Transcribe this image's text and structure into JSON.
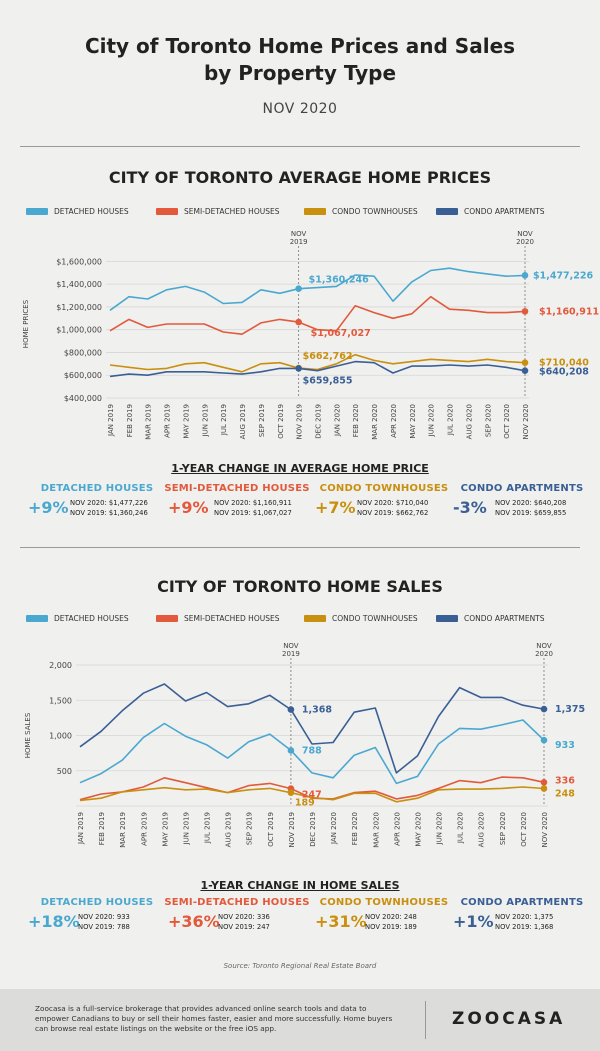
{
  "header": {
    "title_line1": "City of Toronto Home Prices and Sales",
    "title_line2": "by Property Type",
    "subtitle": "NOV 2020"
  },
  "colors": {
    "detached": "#4aa8d0",
    "semi": "#e2593b",
    "townhouse": "#c98f0e",
    "apartment": "#3a5f95"
  },
  "legend": [
    "DETACHED HOUSES",
    "SEMI-DETACHED HOUSES",
    "CONDO TOWNHOUSES",
    "CONDO APARTMENTS"
  ],
  "months": [
    "JAN 2019",
    "FEB 2019",
    "MAR 2019",
    "APR 2019",
    "MAY 2019",
    "JUN 2019",
    "JUL 2019",
    "AUG 2019",
    "SEP 2019",
    "OCT 2019",
    "NOV 2019",
    "DEC 2019",
    "JAN 2020",
    "FEB 2020",
    "MAR 2020",
    "APR 2020",
    "MAY 2020",
    "JUN 2020",
    "JUL 2020",
    "AUG 2020",
    "SEP 2020",
    "OCT 2020",
    "NOV 2020"
  ],
  "price_section": {
    "title": "CITY OF TORONTO AVERAGE HOME PRICES",
    "change_title": "1-YEAR CHANGE IN AVERAGE HOME PRICE",
    "changes": [
      {
        "name": "DETACHED HOUSES",
        "pct": "+9%",
        "l1": "NOV 2020:  $1,477,226",
        "l2": "NOV 2019:  $1,360,246"
      },
      {
        "name": "SEMI-DETACHED HOUSES",
        "pct": "+9%",
        "l1": "NOV 2020:  $1,160,911",
        "l2": "NOV 2019:  $1,067,027"
      },
      {
        "name": "CONDO TOWNHOUSES",
        "pct": "+7%",
        "l1": "NOV 2020:  $710,040",
        "l2": "NOV 2019:  $662,762"
      },
      {
        "name": "CONDO APARTMENTS",
        "pct": "-3%",
        "l1": "NOV 2020:  $640,208",
        "l2": "NOV 2019:  $659,855"
      }
    ]
  },
  "sales_section": {
    "title": "CITY OF TORONTO HOME SALES",
    "change_title": "1-YEAR CHANGE IN HOME SALES",
    "changes": [
      {
        "name": "DETACHED HOUSES",
        "pct": "+18%",
        "l1": "NOV 2020:  933",
        "l2": "NOV 2019:  788"
      },
      {
        "name": "SEMI-DETACHED HOUSES",
        "pct": "+36%",
        "l1": "NOV 2020:  336",
        "l2": "NOV 2019:  247"
      },
      {
        "name": "CONDO TOWNHOUSES",
        "pct": "+31%",
        "l1": "NOV 2020:  248",
        "l2": "NOV 2019:  189"
      },
      {
        "name": "CONDO APARTMENTS",
        "pct": "+1%",
        "l1": "NOV 2020:  1,375",
        "l2": "NOV 2019:  1,368"
      }
    ]
  },
  "source": "Source: Toronto Regional Real Estate Board",
  "footer": {
    "text": "Zoocasa is a full-service brokerage that provides advanced online search tools and data to empower Canadians to buy or sell their homes faster, easier and more successfully. Home buyers can browse real estate listings on the website or the free iOS app.",
    "logo": "ZOOCASA"
  },
  "chart_data": [
    {
      "type": "line",
      "title": "CITY OF TORONTO AVERAGE HOME PRICES",
      "ylabel": "HOME PRICES",
      "ylim": [
        400000,
        1700000
      ],
      "yticks": [
        "$400,000",
        "$600,000",
        "$800,000",
        "$1,000,000",
        "$1,200,000",
        "$1,400,000",
        "$1,600,000"
      ],
      "ytick_values": [
        400000,
        600000,
        800000,
        1000000,
        1200000,
        1400000,
        1600000
      ],
      "marker_labels": [
        "NOV\n2019",
        "NOV\n2020"
      ],
      "series": [
        {
          "name": "DETACHED HOUSES",
          "key": "detached",
          "values": [
            1170000,
            1290000,
            1270000,
            1350000,
            1380000,
            1330000,
            1230000,
            1240000,
            1350000,
            1320000,
            1360246,
            1370000,
            1380000,
            1480000,
            1470000,
            1250000,
            1420000,
            1520000,
            1540000,
            1510000,
            1490000,
            1470000,
            1477226
          ],
          "label_nov19": "$1,360,246",
          "label_nov20": "$1,477,226"
        },
        {
          "name": "SEMI-DETACHED HOUSES",
          "key": "semi",
          "values": [
            990000,
            1090000,
            1020000,
            1050000,
            1050000,
            1050000,
            980000,
            960000,
            1060000,
            1090000,
            1067027,
            1000000,
            990000,
            1210000,
            1150000,
            1100000,
            1140000,
            1290000,
            1180000,
            1170000,
            1150000,
            1150000,
            1160911
          ],
          "label_nov19": "$1,067,027",
          "label_nov20": "$1,160,911"
        },
        {
          "name": "CONDO TOWNHOUSES",
          "key": "townhouse",
          "values": [
            690000,
            670000,
            650000,
            660000,
            700000,
            710000,
            670000,
            630000,
            700000,
            710000,
            662762,
            650000,
            700000,
            780000,
            730000,
            700000,
            720000,
            740000,
            730000,
            720000,
            740000,
            720000,
            710040
          ],
          "label_nov19": "$662,762",
          "label_nov20": "$710,040"
        },
        {
          "name": "CONDO APARTMENTS",
          "key": "apartment",
          "values": [
            590000,
            610000,
            600000,
            630000,
            630000,
            630000,
            620000,
            610000,
            630000,
            660000,
            659855,
            640000,
            680000,
            720000,
            710000,
            620000,
            680000,
            680000,
            690000,
            680000,
            690000,
            670000,
            640208
          ],
          "label_nov19": "$659,855",
          "label_nov20": "$640,208"
        }
      ]
    },
    {
      "type": "line",
      "title": "CITY OF TORONTO HOME SALES",
      "ylabel": "HOME SALES",
      "ylim": [
        0,
        2000
      ],
      "yticks": [
        "",
        "500",
        "1,000",
        "1,500",
        "2,000"
      ],
      "ytick_values": [
        0,
        500,
        1000,
        1500,
        2000
      ],
      "marker_labels": [
        "NOV\n2019",
        "NOV\n2020"
      ],
      "series": [
        {
          "name": "DETACHED HOUSES",
          "key": "detached",
          "values": [
            330,
            460,
            650,
            970,
            1170,
            990,
            870,
            680,
            910,
            1020,
            788,
            470,
            400,
            720,
            830,
            320,
            420,
            880,
            1100,
            1090,
            1150,
            1220,
            933
          ],
          "label_nov19": "788",
          "label_nov20": "933"
        },
        {
          "name": "SEMI-DETACHED HOUSES",
          "key": "semi",
          "values": [
            90,
            170,
            200,
            270,
            400,
            330,
            260,
            190,
            290,
            320,
            247,
            110,
            100,
            190,
            210,
            100,
            150,
            250,
            360,
            330,
            410,
            400,
            336
          ],
          "label_nov19": "247",
          "label_nov20": "336"
        },
        {
          "name": "CONDO TOWNHOUSES",
          "key": "townhouse",
          "values": [
            80,
            110,
            200,
            230,
            260,
            230,
            240,
            190,
            230,
            250,
            189,
            120,
            90,
            180,
            180,
            60,
            110,
            230,
            240,
            240,
            250,
            270,
            248
          ],
          "label_nov19": "189",
          "label_nov20": "248"
        },
        {
          "name": "CONDO APARTMENTS",
          "key": "apartment",
          "values": [
            840,
            1060,
            1350,
            1600,
            1730,
            1490,
            1610,
            1410,
            1450,
            1570,
            1368,
            880,
            900,
            1330,
            1390,
            470,
            710,
            1270,
            1680,
            1540,
            1540,
            1430,
            1375
          ],
          "label_nov19": "1,368",
          "label_nov20": "1,375"
        }
      ]
    }
  ]
}
